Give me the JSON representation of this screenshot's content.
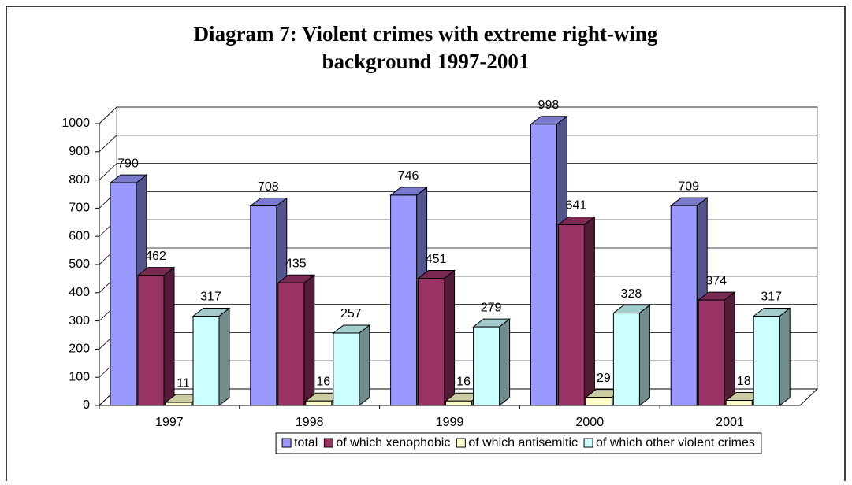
{
  "chart_data": {
    "type": "bar3d",
    "title": [
      "Diagram 7: Violent crimes with extreme right-wing",
      "background 1997-2001"
    ],
    "categories": [
      "1997",
      "1998",
      "1999",
      "2000",
      "2001"
    ],
    "series": [
      {
        "name": "total",
        "color": "#9999ff",
        "values": [
          790,
          708,
          746,
          998,
          709
        ]
      },
      {
        "name": "of which xenophobic",
        "color": "#993366",
        "values": [
          462,
          435,
          451,
          641,
          374
        ]
      },
      {
        "name": "of which antisemitic",
        "color": "#ffffcc",
        "values": [
          11,
          16,
          16,
          29,
          18
        ]
      },
      {
        "name": "of which other violent crimes",
        "color": "#ccffff",
        "values": [
          317,
          257,
          279,
          328,
          317
        ]
      }
    ],
    "ylim": [
      0,
      1000
    ],
    "yticks": [
      0,
      100,
      200,
      300,
      400,
      500,
      600,
      700,
      800,
      900,
      1000
    ],
    "grid": true,
    "legend": "bottom"
  }
}
